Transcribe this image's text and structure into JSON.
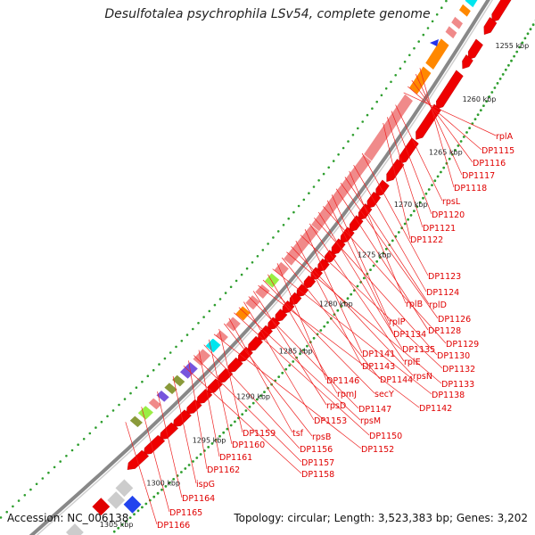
{
  "title": "Desulfotalea psychrophila LSv54, complete genome",
  "footer": {
    "accession": "Accession: NC_006138",
    "summary": "Topology: circular; Length: 3,523,383 bp; Genes: 3,202"
  },
  "colors": {
    "gene_forward": "#ee0000",
    "gene_light": "#f08a8a",
    "backbone": "#999999",
    "tick_dots": "#2e9e2e",
    "label": "#e00000",
    "orange": "#ff8800",
    "cyan": "#00e5ee",
    "green": "#99ee44",
    "purple": "#7755dd",
    "olive": "#8a9a3a"
  },
  "scale": {
    "unit": "kbp",
    "ticks": [
      "1255 kbp",
      "1260 kbp",
      "1265 kbp",
      "1270 kbp",
      "1275 kbp",
      "1280 kbp",
      "1285 kbp",
      "1290 kbp",
      "1295 kbp",
      "1300 kbp",
      "1305 kbp"
    ]
  },
  "labels": [
    "rplA",
    "DP1115",
    "DP1116",
    "DP1117",
    "DP1118",
    "rpsL",
    "DP1120",
    "DP1121",
    "DP1122",
    "DP1123",
    "DP1124",
    "rplB",
    "rplD",
    "DP1126",
    "DP1128",
    "rplP",
    "DP1134",
    "DP1129",
    "DP1135",
    "DP1130",
    "rplE",
    "DP1141",
    "DP1132",
    "DP1143",
    "rpsN",
    "DP1133",
    "DP1144",
    "DP1146",
    "DP1138",
    "rpmJ",
    "secY",
    "DP1142",
    "rpsD",
    "DP1147",
    "DP1153",
    "rpsM",
    "DP1150",
    "tsf",
    "rpsB",
    "DP1159",
    "DP1152",
    "DP1160",
    "DP1156",
    "DP1161",
    "DP1157",
    "DP1162",
    "DP1158",
    "ispG",
    "DP1164",
    "DP1165",
    "DP1166"
  ]
}
